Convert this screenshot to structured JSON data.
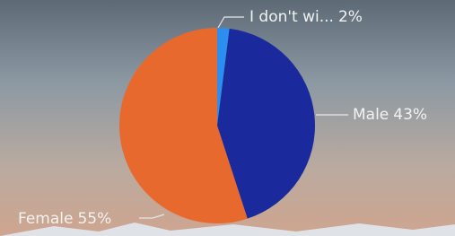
{
  "chart_data": {
    "type": "pie",
    "categories": [
      "I don't wi...",
      "Male",
      "Female"
    ],
    "values": [
      2,
      43,
      55
    ],
    "value_labels": [
      "2%",
      "43%",
      "55%"
    ],
    "colors": [
      "#2b8ef0",
      "#1a2a9c",
      "#e8692e"
    ]
  }
}
